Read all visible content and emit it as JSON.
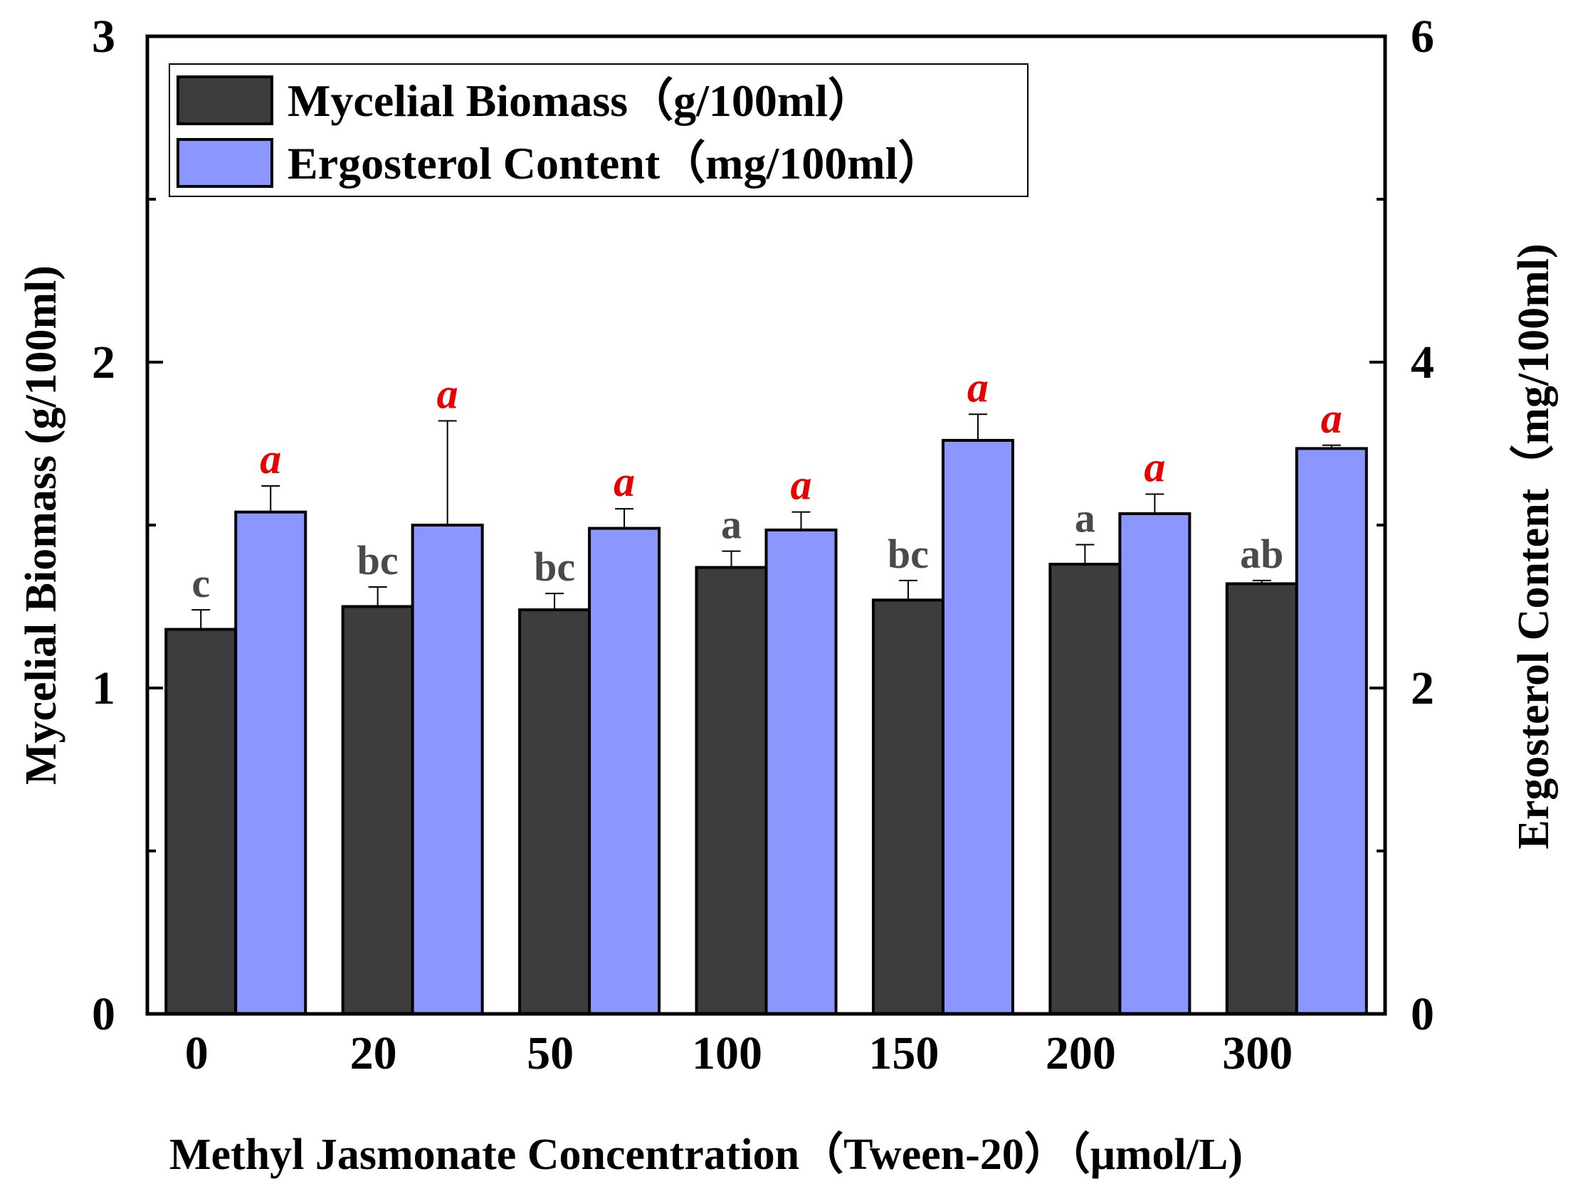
{
  "chart_data": {
    "type": "bar",
    "xlabel": "Methyl Jasmonate Concentration（Tween-20）（μmol/L)",
    "ylabel_left": "Mycelial Biomass (g/100ml)",
    "ylabel_right": "Ergosterol  Content（mg/100ml)",
    "categories": [
      "0",
      "20",
      "50",
      "100",
      "150",
      "200",
      "300"
    ],
    "ylim_left": [
      0,
      3
    ],
    "ylim_right": [
      0,
      6
    ],
    "yticks_left": [
      "0",
      "1",
      "2",
      "3"
    ],
    "yticks_right": [
      "0",
      "2",
      "4",
      "6"
    ],
    "series": [
      {
        "name": "Mycelial Biomass（g/100ml）",
        "axis": "left",
        "color": "#3d3d3d",
        "values": [
          1.18,
          1.25,
          1.24,
          1.37,
          1.27,
          1.38,
          1.32
        ],
        "errors": [
          0.06,
          0.06,
          0.05,
          0.05,
          0.06,
          0.06,
          0.01
        ],
        "labels": [
          "c",
          "bc",
          "bc",
          "a",
          "bc",
          "a",
          "ab"
        ]
      },
      {
        "name": "Ergosterol Content（mg/100ml）",
        "axis": "right",
        "color": "#8c96ff",
        "values": [
          3.08,
          3.0,
          2.98,
          2.97,
          3.52,
          3.07,
          3.47
        ],
        "errors": [
          0.16,
          0.64,
          0.12,
          0.11,
          0.16,
          0.12,
          0.02
        ],
        "labels": [
          "a",
          "a",
          "a",
          "a",
          "a",
          "a",
          "a"
        ]
      }
    ],
    "legend_position": "top-left"
  }
}
